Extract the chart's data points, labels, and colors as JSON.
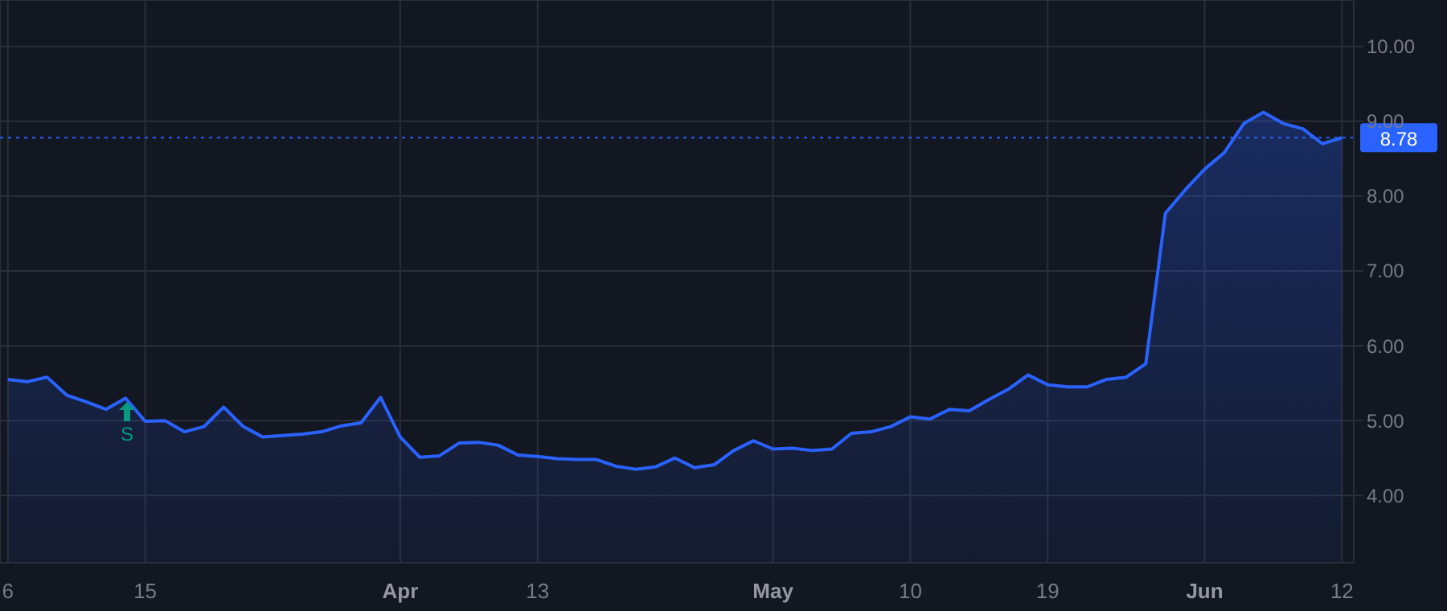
{
  "chart_data": {
    "type": "area",
    "categories": [
      "6",
      null,
      null,
      null,
      null,
      null,
      null,
      "15",
      null,
      null,
      null,
      null,
      null,
      null,
      null,
      null,
      null,
      null,
      null,
      null,
      "Apr",
      null,
      null,
      null,
      null,
      null,
      null,
      "13",
      null,
      null,
      null,
      null,
      null,
      null,
      null,
      null,
      null,
      null,
      null,
      "May",
      null,
      null,
      null,
      null,
      null,
      null,
      "10",
      null,
      null,
      null,
      null,
      null,
      null,
      "19",
      null,
      null,
      null,
      null,
      null,
      null,
      null,
      "Jun",
      null,
      null,
      null,
      null,
      null,
      null,
      "12"
    ],
    "series": [
      {
        "color": "#2962ff",
        "values": [
          5.55,
          5.52,
          5.58,
          5.34,
          5.25,
          5.15,
          5.3,
          4.99,
          5.0,
          4.85,
          4.92,
          5.18,
          4.92,
          4.78,
          4.8,
          4.82,
          4.85,
          4.93,
          4.97,
          5.31,
          4.78,
          4.51,
          4.53,
          4.7,
          4.71,
          4.67,
          4.54,
          4.52,
          4.49,
          4.48,
          4.48,
          4.39,
          4.35,
          4.38,
          4.5,
          4.37,
          4.41,
          4.6,
          4.73,
          4.62,
          4.63,
          4.6,
          4.62,
          4.83,
          4.85,
          4.92,
          5.05,
          5.02,
          5.15,
          5.13,
          5.28,
          5.42,
          5.61,
          5.48,
          5.45,
          5.45,
          5.55,
          5.58,
          5.76,
          7.77,
          8.08,
          8.36,
          8.58,
          8.97,
          9.12,
          8.97,
          8.9,
          8.7,
          8.78
        ]
      }
    ],
    "ylim": [
      3.1,
      10.62
    ],
    "yticks": [
      {
        "value": 4,
        "label": "4.00"
      },
      {
        "value": 5,
        "label": "5.00"
      },
      {
        "value": 6,
        "label": "6.00"
      },
      {
        "value": 7,
        "label": "7.00"
      },
      {
        "value": 8,
        "label": "8.00"
      },
      {
        "value": 9,
        "label": "9.00"
      },
      {
        "value": 10,
        "label": "10.00"
      }
    ],
    "grid": true,
    "ref_lines": [
      {
        "axis": "y",
        "value": 8.78,
        "label": "8.78",
        "color": "#2962ff",
        "line_style": "dotted"
      }
    ],
    "annotations": [
      "S"
    ]
  }
}
